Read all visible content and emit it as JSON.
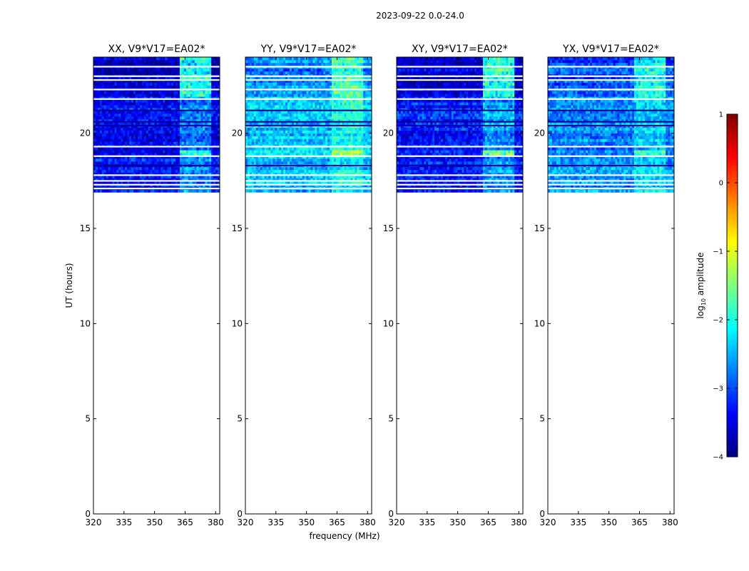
{
  "figure": {
    "suptitle": "2023-09-22 0.0-24.0",
    "ylabel": "UT (hours)",
    "xlabel": "frequency (MHz)"
  },
  "colorbar": {
    "label_prefix": "log",
    "label_sub": "10",
    "label_suffix": " amplitude",
    "min": -4,
    "max": 1,
    "ticks": [
      1,
      0,
      -1,
      -2,
      -3,
      -4
    ],
    "tick_labels": [
      "1",
      "0",
      "−1",
      "−2",
      "−3",
      "−4"
    ],
    "colormap": "jet",
    "colors": [
      "#00007f",
      "#0000ff",
      "#007fff",
      "#00ffff",
      "#7fff7f",
      "#ffff00",
      "#ff7f00",
      "#ff0000",
      "#7f0000"
    ]
  },
  "chart_data": [
    {
      "type": "heatmap",
      "title": "XX, V9*V17=EA02*",
      "xlim": [
        320,
        382
      ],
      "ylim": [
        0,
        24
      ],
      "xticks": [
        320,
        335,
        350,
        365,
        380
      ],
      "yticks": [
        0,
        5,
        10,
        15,
        20
      ],
      "data_time_range": [
        16.9,
        24.0
      ],
      "mean_log_amplitude": -3.3,
      "feature_band_MHz": [
        362,
        378
      ],
      "feature_log_amplitude": -1.6
    },
    {
      "type": "heatmap",
      "title": "YY, V9*V17=EA02*",
      "xlim": [
        320,
        382
      ],
      "ylim": [
        0,
        24
      ],
      "xticks": [
        320,
        335,
        350,
        365,
        380
      ],
      "yticks": [
        0,
        5,
        10,
        15,
        20
      ],
      "data_time_range": [
        16.9,
        24.0
      ],
      "mean_log_amplitude": -2.4,
      "feature_band_MHz": [
        362,
        378
      ],
      "feature_log_amplitude": -1.4
    },
    {
      "type": "heatmap",
      "title": "XY, V9*V17=EA02*",
      "xlim": [
        320,
        382
      ],
      "ylim": [
        0,
        24
      ],
      "xticks": [
        320,
        335,
        350,
        365,
        380
      ],
      "yticks": [
        0,
        5,
        10,
        15,
        20
      ],
      "data_time_range": [
        16.9,
        24.0
      ],
      "mean_log_amplitude": -3.3,
      "feature_band_MHz": [
        362,
        378
      ],
      "feature_log_amplitude": -1.5
    },
    {
      "type": "heatmap",
      "title": "YX, V9*V17=EA02*",
      "xlim": [
        320,
        382
      ],
      "ylim": [
        0,
        24
      ],
      "xticks": [
        320,
        335,
        350,
        365,
        380
      ],
      "yticks": [
        0,
        5,
        10,
        15,
        20
      ],
      "data_time_range": [
        16.9,
        24.0
      ],
      "mean_log_amplitude": -2.7,
      "feature_band_MHz": [
        362,
        378
      ],
      "feature_log_amplitude": -1.7
    }
  ],
  "flagged_times_h": [
    23.5,
    23.0,
    22.8,
    22.3,
    21.8,
    19.3,
    18.8,
    17.8,
    17.5,
    17.3,
    17.1
  ],
  "dark_times_h": [
    20.4,
    20.6,
    21.2,
    18.3
  ]
}
